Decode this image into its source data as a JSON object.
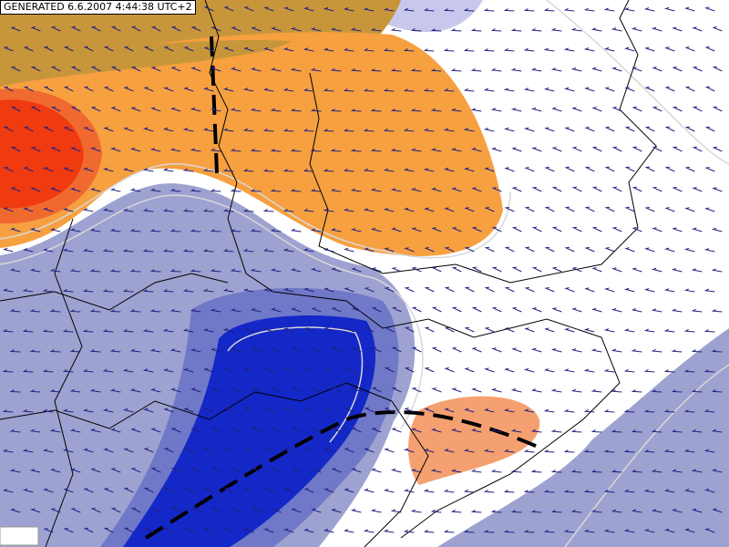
{
  "header": {
    "timestamp": "GENERATED 6.6.2007 4:44:38 UTC+2"
  }
}
